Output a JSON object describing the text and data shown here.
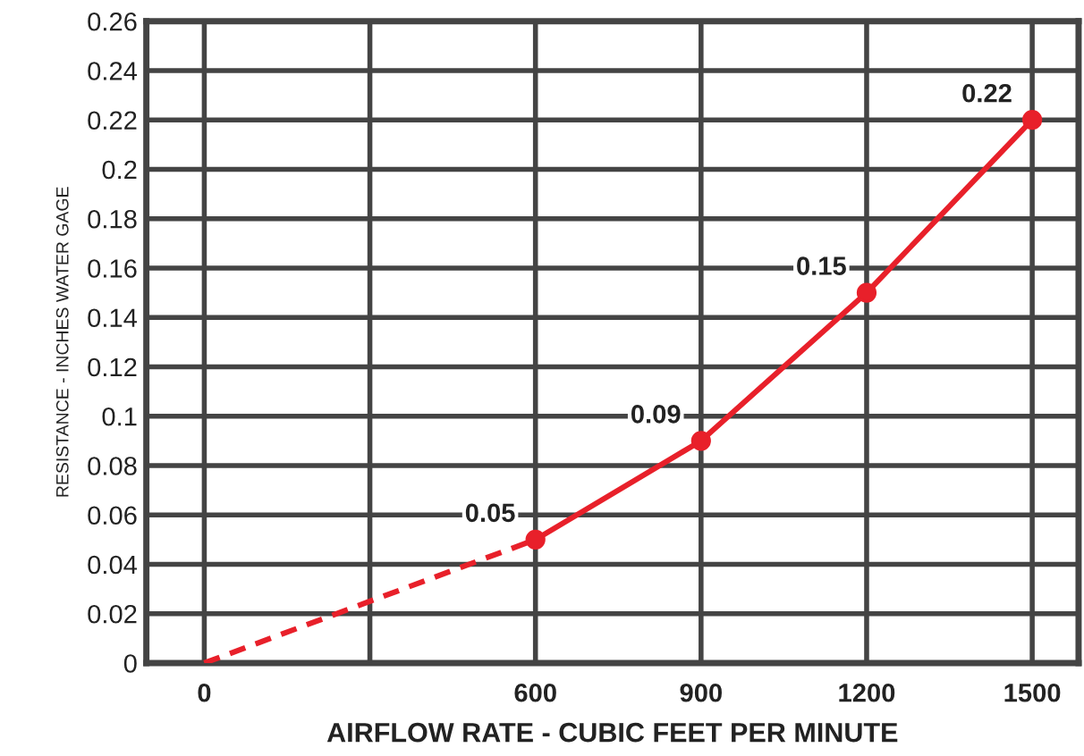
{
  "chart_data": {
    "type": "line",
    "xlabel": "AIRFLOW RATE - CUBIC FEET PER MINUTE",
    "ylabel": "RESISTANCE - INCHES WATER GAGE",
    "categories": [
      "0",
      null,
      "600",
      "900",
      "1200",
      "1500"
    ],
    "series": [
      {
        "color": "#e8202a",
        "values": [
          0,
          null,
          0.05,
          null,
          null,
          null
        ],
        "line_style": "dashed",
        "marker": "none"
      },
      {
        "color": "#e8202a",
        "values": [
          null,
          null,
          0.05,
          0.09,
          0.15,
          0.22
        ],
        "line_style": "solid",
        "marker": "circle",
        "value_labels": [
          null,
          null,
          "0.05",
          "0.09",
          "0.15",
          "0.22"
        ]
      }
    ],
    "ylim": [
      0,
      0.26
    ],
    "yticks": [
      0,
      0.02,
      0.04,
      0.06,
      0.08,
      0.1,
      0.12,
      0.14,
      0.16,
      0.18,
      0.2,
      0.22,
      0.24,
      0.26
    ],
    "grid": true
  }
}
